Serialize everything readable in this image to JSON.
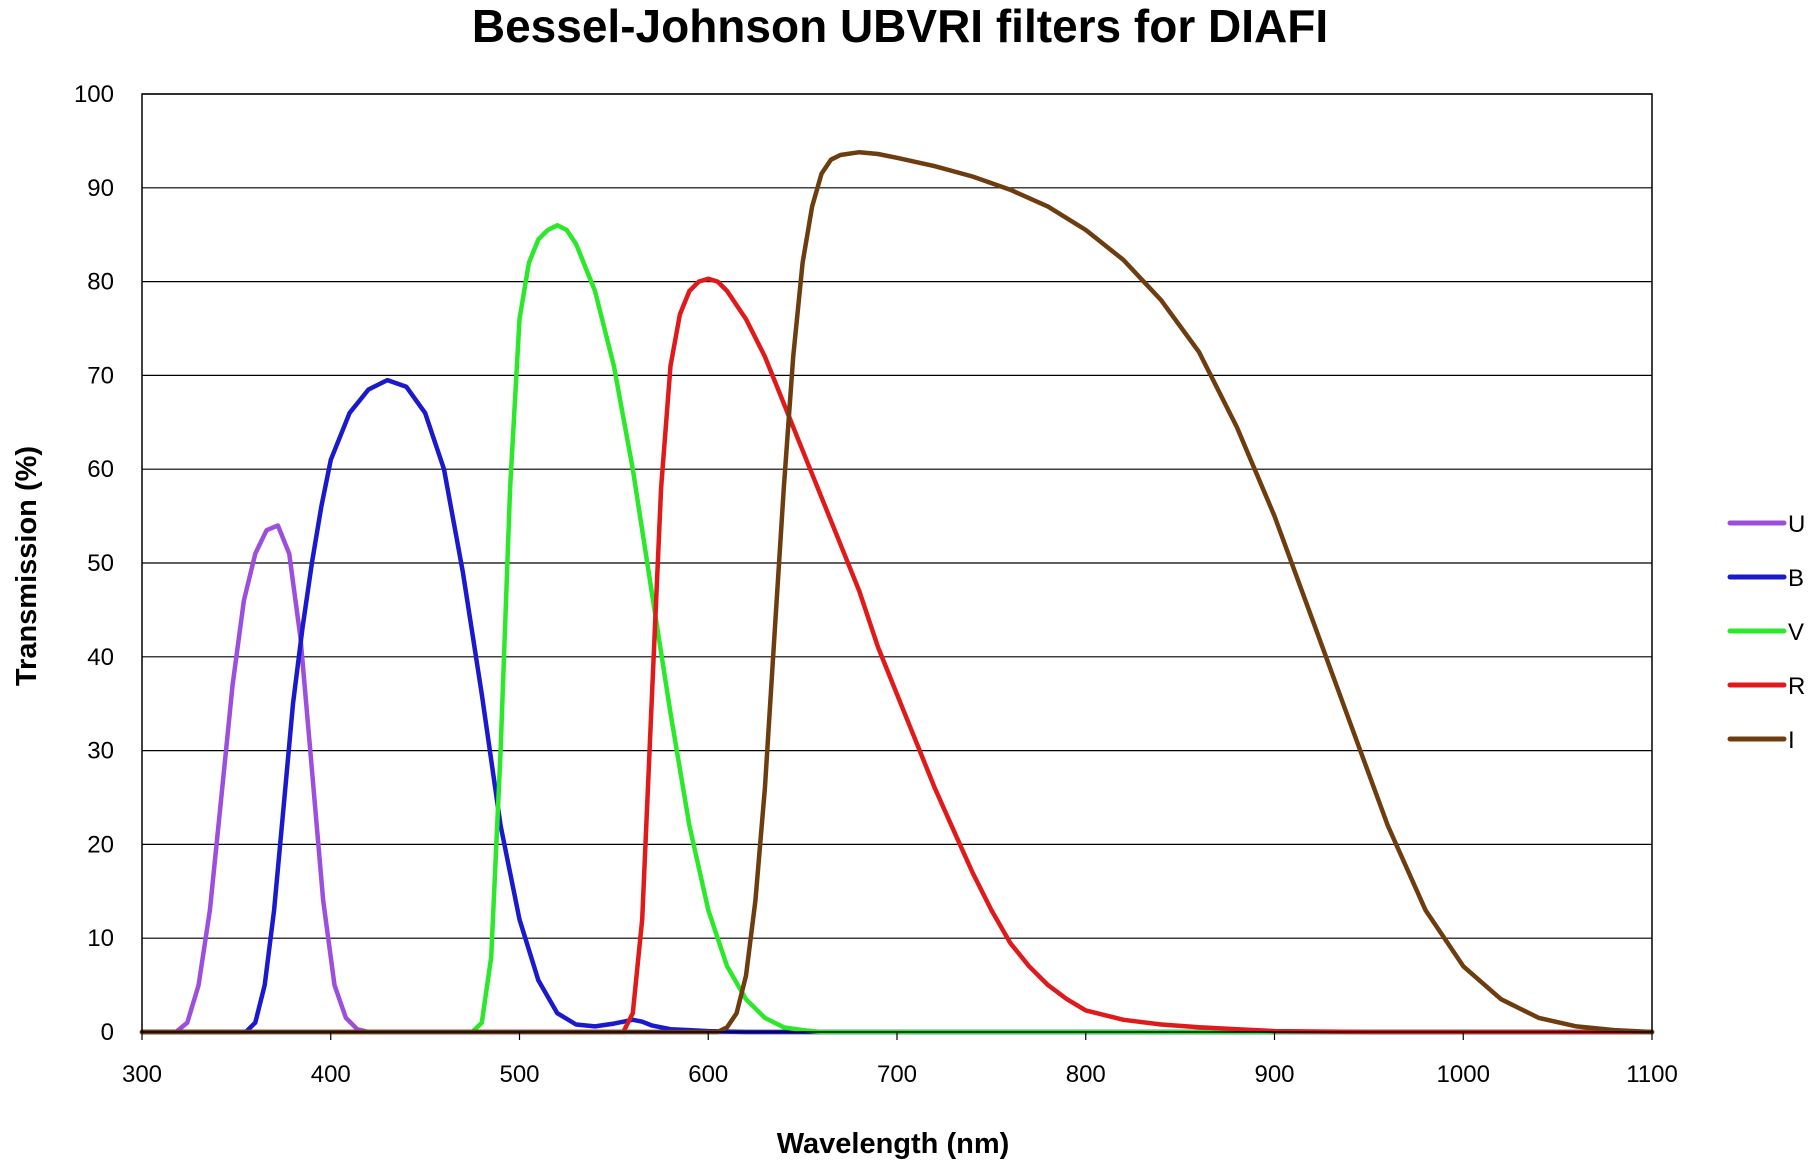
{
  "chart_data": {
    "type": "line",
    "title": "Bessel-Johnson UBVRI filters for DIAFI",
    "xlabel": "Wavelength (nm)",
    "ylabel": "Transmission (%)",
    "xlim": [
      300,
      1100
    ],
    "ylim": [
      0,
      100
    ],
    "xticks": [
      300,
      400,
      500,
      600,
      700,
      800,
      900,
      1000,
      1100
    ],
    "yticks": [
      0,
      10,
      20,
      30,
      40,
      50,
      60,
      70,
      80,
      90,
      100
    ],
    "grid": "horizontal",
    "legend_position": "right",
    "series": [
      {
        "name": "U",
        "color": "#9B4FDC",
        "x": [
          300,
          318,
          324,
          330,
          336,
          342,
          348,
          354,
          360,
          366,
          372,
          378,
          384,
          390,
          396,
          402,
          408,
          414,
          420,
          1100
        ],
        "y": [
          0,
          0,
          1,
          5,
          13,
          25,
          37,
          46,
          51,
          53.5,
          54,
          51,
          42,
          28,
          14,
          5,
          1.5,
          0.3,
          0,
          0
        ]
      },
      {
        "name": "B",
        "color": "#1A1ACC",
        "x": [
          300,
          355,
          360,
          365,
          370,
          375,
          380,
          385,
          390,
          395,
          400,
          410,
          420,
          430,
          440,
          450,
          460,
          470,
          480,
          490,
          500,
          510,
          520,
          530,
          540,
          550,
          560,
          565,
          570,
          580,
          590,
          600,
          620,
          650,
          1100
        ],
        "y": [
          0,
          0,
          1,
          5,
          13,
          24,
          35,
          43,
          50,
          56,
          61,
          66,
          68.5,
          69.5,
          68.8,
          66,
          60,
          49,
          36,
          22,
          12,
          5.5,
          2,
          0.8,
          0.6,
          0.9,
          1.3,
          1.1,
          0.7,
          0.3,
          0.2,
          0.1,
          0,
          0,
          0
        ]
      },
      {
        "name": "V",
        "color": "#2BE82B",
        "x": [
          300,
          475,
          480,
          485,
          490,
          495,
          500,
          505,
          510,
          515,
          520,
          525,
          530,
          540,
          550,
          560,
          570,
          580,
          590,
          600,
          610,
          620,
          630,
          640,
          650,
          660,
          680,
          700,
          1100
        ],
        "y": [
          0,
          0,
          1,
          8,
          30,
          58,
          76,
          82,
          84.5,
          85.5,
          86,
          85.5,
          84,
          79,
          71,
          60,
          47,
          34,
          22,
          13,
          7,
          3.5,
          1.5,
          0.5,
          0.2,
          0,
          0,
          0,
          0
        ]
      },
      {
        "name": "R",
        "color": "#E01A1A",
        "x": [
          300,
          555,
          560,
          565,
          570,
          575,
          580,
          585,
          590,
          595,
          600,
          605,
          610,
          620,
          630,
          640,
          650,
          660,
          670,
          680,
          690,
          700,
          710,
          720,
          730,
          740,
          750,
          760,
          770,
          780,
          790,
          800,
          820,
          840,
          860,
          880,
          900,
          950,
          1000,
          1100
        ],
        "y": [
          0,
          0,
          2,
          12,
          35,
          58,
          71,
          76.5,
          79,
          80,
          80.3,
          80,
          79,
          76,
          72,
          67,
          62,
          57,
          52,
          47,
          41,
          36,
          31,
          26,
          21.5,
          17,
          13,
          9.5,
          7,
          5,
          3.5,
          2.3,
          1.3,
          0.8,
          0.5,
          0.3,
          0.1,
          0,
          0,
          0
        ]
      },
      {
        "name": "I",
        "color": "#6E3D0F",
        "x": [
          300,
          605,
          610,
          615,
          620,
          625,
          630,
          635,
          640,
          645,
          650,
          655,
          660,
          665,
          670,
          680,
          690,
          700,
          720,
          740,
          760,
          780,
          800,
          820,
          840,
          860,
          880,
          900,
          920,
          940,
          960,
          980,
          1000,
          1020,
          1040,
          1060,
          1080,
          1100
        ],
        "y": [
          0,
          0,
          0.5,
          2,
          6,
          14,
          26,
          42,
          58,
          72,
          82,
          88,
          91.5,
          93,
          93.5,
          93.8,
          93.6,
          93.2,
          92.3,
          91.2,
          89.8,
          88,
          85.5,
          82.3,
          78,
          72.5,
          64.5,
          55,
          44,
          33,
          22,
          13,
          7,
          3.5,
          1.5,
          0.6,
          0.2,
          0
        ]
      }
    ]
  }
}
